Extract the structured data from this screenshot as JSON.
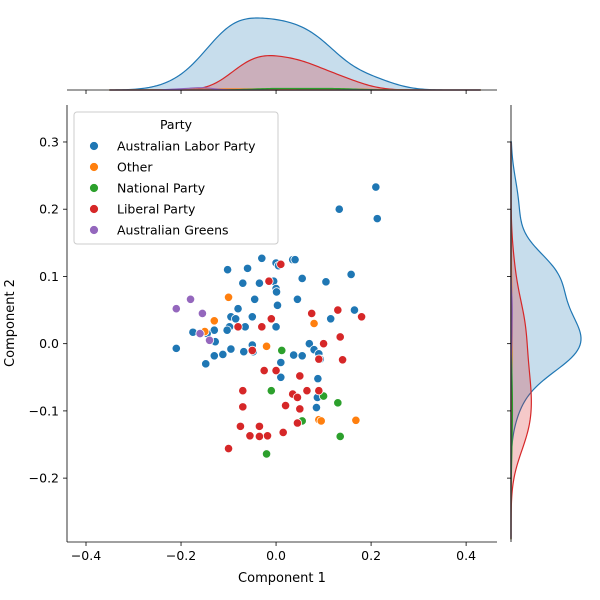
{
  "chart_data": {
    "type": "scatter",
    "title": "",
    "xlabel": "Component 1",
    "ylabel": "Component 2",
    "xlim": [
      -0.44,
      0.465
    ],
    "ylim": [
      -0.295,
      0.355
    ],
    "xticks": [
      -0.4,
      -0.2,
      0.0,
      0.2,
      0.4
    ],
    "yticks": [
      -0.2,
      -0.1,
      0.0,
      0.1,
      0.2,
      0.3
    ],
    "xtick_labels": [
      "−0.4",
      "−0.2",
      "0.0",
      "0.2",
      "0.4"
    ],
    "ytick_labels": [
      "−0.2",
      "−0.1",
      "0.0",
      "0.1",
      "0.2",
      "0.3"
    ],
    "grid": false,
    "legend": {
      "title": "Party",
      "position": "top-left"
    },
    "marginal": {
      "top": "kde-of-component-1",
      "right": "kde-of-component-2"
    },
    "series": [
      {
        "name": "Australian Labor Party",
        "color": "#1f77b4",
        "points": [
          [
            0.21,
            0.233
          ],
          [
            0.133,
            0.2
          ],
          [
            0.213,
            0.186
          ],
          [
            -0.03,
            0.127
          ],
          [
            0.035,
            0.125
          ],
          [
            0.04,
            0.125
          ],
          [
            0.0,
            0.12
          ],
          [
            -0.102,
            0.11
          ],
          [
            -0.06,
            0.112
          ],
          [
            0.005,
            0.116
          ],
          [
            0.158,
            0.103
          ],
          [
            0.055,
            0.097
          ],
          [
            -0.07,
            0.09
          ],
          [
            -0.035,
            0.09
          ],
          [
            -0.005,
            0.093
          ],
          [
            0.105,
            0.092
          ],
          [
            0.0,
            0.082
          ],
          [
            0.001,
            0.077
          ],
          [
            -0.045,
            0.066
          ],
          [
            0.045,
            0.066
          ],
          [
            0.003,
            0.057
          ],
          [
            -0.08,
            0.052
          ],
          [
            0.165,
            0.05
          ],
          [
            0.115,
            0.037
          ],
          [
            -0.095,
            0.04
          ],
          [
            -0.085,
            0.037
          ],
          [
            -0.05,
            0.04
          ],
          [
            0.0,
            0.025
          ],
          [
            -0.098,
            0.025
          ],
          [
            -0.065,
            0.025
          ],
          [
            -0.13,
            0.02
          ],
          [
            -0.103,
            0.02
          ],
          [
            -0.175,
            0.017
          ],
          [
            -0.145,
            0.015
          ],
          [
            -0.128,
            0.003
          ],
          [
            0.07,
            0.0
          ],
          [
            -0.05,
            -0.002
          ],
          [
            0.08,
            -0.009
          ],
          [
            -0.068,
            -0.012
          ],
          [
            -0.095,
            -0.008
          ],
          [
            -0.048,
            -0.012
          ],
          [
            0.037,
            -0.017
          ],
          [
            0.055,
            -0.018
          ],
          [
            0.09,
            -0.015
          ],
          [
            0.093,
            -0.023
          ],
          [
            -0.13,
            -0.018
          ],
          [
            -0.112,
            -0.016
          ],
          [
            -0.148,
            -0.03
          ],
          [
            0.01,
            -0.028
          ],
          [
            0.01,
            -0.05
          ],
          [
            0.088,
            -0.052
          ],
          [
            0.087,
            -0.08
          ],
          [
            0.085,
            -0.095
          ],
          [
            -0.21,
            -0.007
          ]
        ]
      },
      {
        "name": "Other",
        "color": "#ff7f0e",
        "points": [
          [
            -0.1,
            0.069
          ],
          [
            -0.13,
            0.034
          ],
          [
            -0.15,
            0.018
          ],
          [
            0.08,
            0.03
          ],
          [
            -0.02,
            -0.004
          ],
          [
            0.09,
            -0.113
          ],
          [
            0.095,
            -0.115
          ],
          [
            0.168,
            -0.114
          ]
        ]
      },
      {
        "name": "National Party",
        "color": "#2ca02c",
        "points": [
          [
            0.012,
            -0.01
          ],
          [
            -0.01,
            -0.07
          ],
          [
            0.1,
            -0.078
          ],
          [
            0.13,
            -0.088
          ],
          [
            0.055,
            -0.115
          ],
          [
            0.135,
            -0.138
          ],
          [
            -0.02,
            -0.164
          ]
        ]
      },
      {
        "name": "Liberal Party",
        "color": "#d62728",
        "points": [
          [
            0.01,
            0.118
          ],
          [
            -0.015,
            0.093
          ],
          [
            0.075,
            0.045
          ],
          [
            0.13,
            0.05
          ],
          [
            0.18,
            0.04
          ],
          [
            -0.01,
            0.037
          ],
          [
            -0.03,
            0.025
          ],
          [
            -0.08,
            0.025
          ],
          [
            0.135,
            0.01
          ],
          [
            -0.05,
            -0.01
          ],
          [
            0.1,
            0.0
          ],
          [
            0.09,
            -0.023
          ],
          [
            0.14,
            -0.024
          ],
          [
            -0.025,
            -0.04
          ],
          [
            0.0,
            -0.04
          ],
          [
            0.05,
            -0.048
          ],
          [
            -0.07,
            -0.07
          ],
          [
            0.035,
            -0.075
          ],
          [
            0.045,
            -0.08
          ],
          [
            0.065,
            -0.07
          ],
          [
            0.09,
            -0.07
          ],
          [
            -0.07,
            -0.094
          ],
          [
            0.02,
            -0.092
          ],
          [
            0.05,
            -0.097
          ],
          [
            0.045,
            -0.118
          ],
          [
            -0.035,
            -0.123
          ],
          [
            -0.075,
            -0.123
          ],
          [
            0.015,
            -0.132
          ],
          [
            -0.055,
            -0.137
          ],
          [
            -0.035,
            -0.138
          ],
          [
            -0.018,
            -0.137
          ],
          [
            -0.1,
            -0.156
          ]
        ]
      },
      {
        "name": "Australian Greens",
        "color": "#9467bd",
        "points": [
          [
            -0.18,
            0.066
          ],
          [
            -0.21,
            0.052
          ],
          [
            -0.155,
            0.045
          ],
          [
            -0.16,
            0.015
          ],
          [
            -0.14,
            0.005
          ]
        ]
      }
    ]
  }
}
